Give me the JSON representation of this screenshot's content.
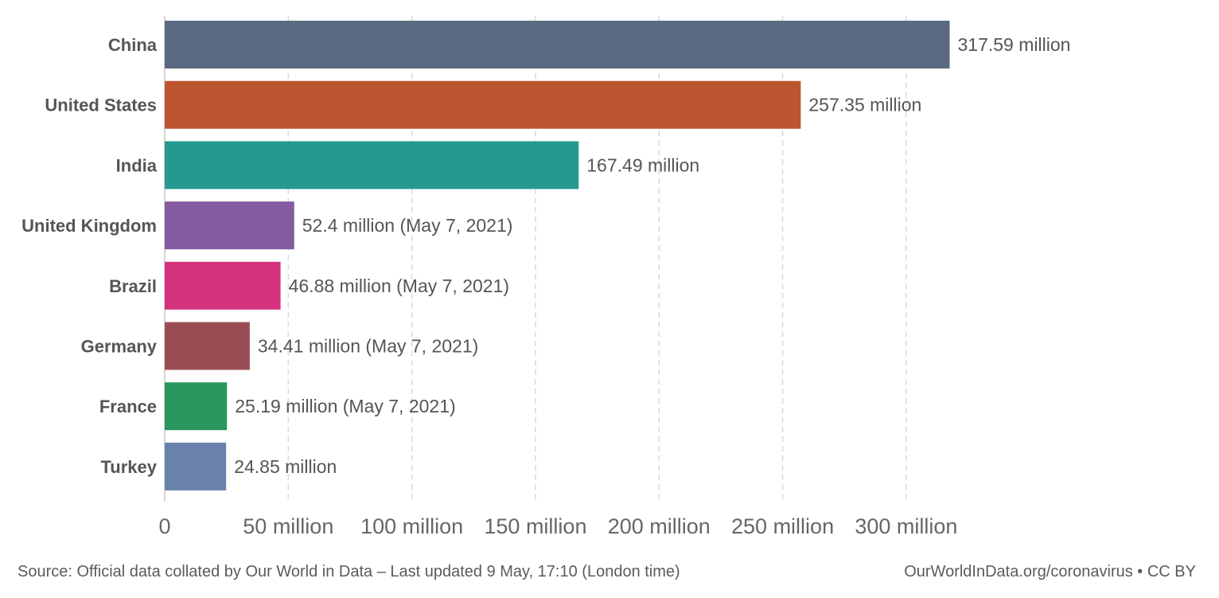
{
  "chart_data": {
    "type": "bar",
    "orientation": "horizontal",
    "categories": [
      "China",
      "United States",
      "India",
      "United Kingdom",
      "Brazil",
      "Germany",
      "France",
      "Turkey"
    ],
    "values": [
      317.59,
      257.35,
      167.49,
      52.4,
      46.88,
      34.41,
      25.19,
      24.85
    ],
    "value_labels": [
      "317.59 million",
      "257.35 million",
      "167.49 million",
      "52.4 million (May 7, 2021)",
      "46.88 million (May 7, 2021)",
      "34.41 million (May 7, 2021)",
      "25.19 million (May 7, 2021)",
      "24.85 million"
    ],
    "colors": [
      "#5b6982",
      "#bd5530",
      "#26998f",
      "#855ba1",
      "#d6317e",
      "#9a4c54",
      "#29965f",
      "#6982ac"
    ],
    "x_ticks": [
      0,
      50,
      100,
      150,
      200,
      250,
      300
    ],
    "x_tick_labels": [
      "0",
      "50 million",
      "100 million",
      "150 million",
      "200 million",
      "250 million",
      "300 million"
    ],
    "xlim": [
      0,
      320
    ],
    "grid": true
  },
  "footer": {
    "source": "Source: Official data collated by Our World in Data – Last updated 9 May, 17:10 (London time)",
    "link": "OurWorldInData.org/coronavirus • CC BY"
  }
}
